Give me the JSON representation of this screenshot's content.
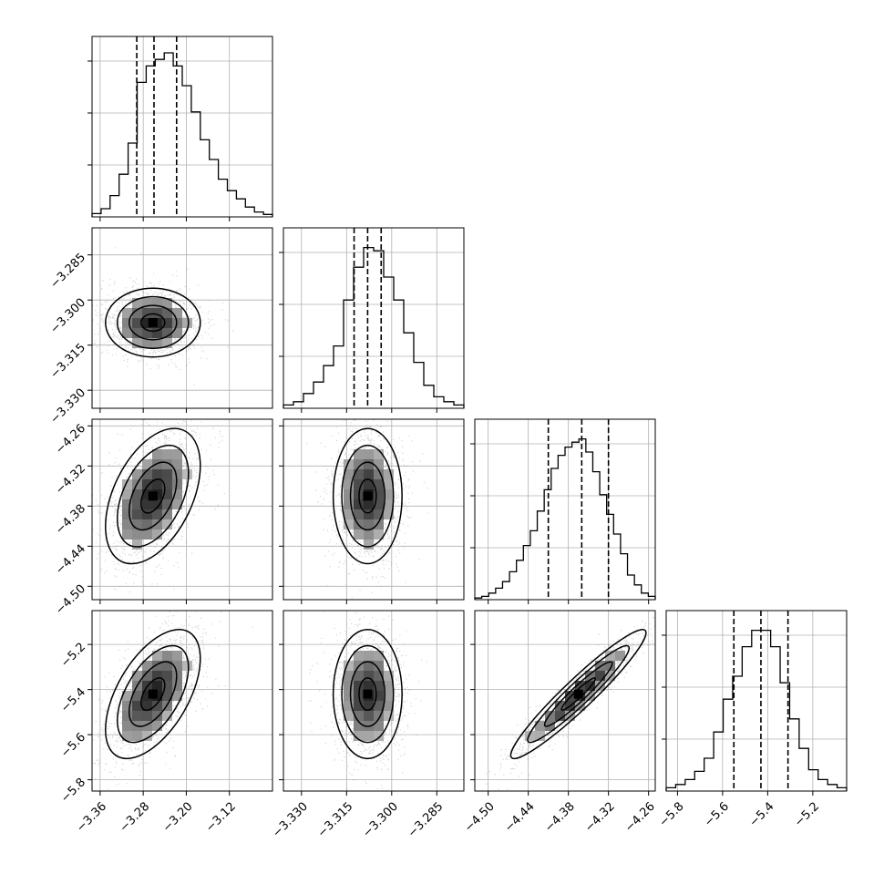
{
  "chart_data": {
    "type": "corner",
    "grid": true,
    "parameters": [
      {
        "range": [
          -3.375,
          -3.04
        ],
        "median": -3.26,
        "q16": -3.292,
        "q84": -3.218,
        "ticks": [
          -3.36,
          -3.28,
          -3.2,
          -3.12
        ],
        "tick_labels": [
          "−3.36",
          "−3.28",
          "−3.20",
          "−3.12"
        ],
        "hist": [
          0.02,
          0.05,
          0.13,
          0.26,
          0.45,
          0.82,
          0.92,
          0.96,
          1.0,
          0.92,
          0.8,
          0.64,
          0.47,
          0.35,
          0.23,
          0.16,
          0.11,
          0.06,
          0.03,
          0.015
        ]
      },
      {
        "range": [
          -3.336,
          -3.276
        ],
        "median": -3.308,
        "q16": -3.3125,
        "q84": -3.3035,
        "ticks": [
          -3.33,
          -3.315,
          -3.3,
          -3.285
        ],
        "tick_labels": [
          "−3.330",
          "−3.315",
          "−3.300",
          "−3.285"
        ],
        "hist": [
          0.02,
          0.04,
          0.09,
          0.16,
          0.26,
          0.38,
          0.66,
          0.86,
          0.98,
          0.96,
          0.8,
          0.66,
          0.46,
          0.28,
          0.14,
          0.07,
          0.04,
          0.02
        ]
      },
      {
        "range": [
          -4.52,
          -4.25
        ],
        "median": -4.36,
        "q16": -4.41,
        "q84": -4.32,
        "ticks": [
          -4.5,
          -4.44,
          -4.38,
          -4.32,
          -4.26
        ],
        "tick_labels": [
          "−4.50",
          "−4.44",
          "−4.38",
          "−4.32",
          "−4.26"
        ],
        "hist": [
          0.01,
          0.02,
          0.04,
          0.07,
          0.11,
          0.17,
          0.24,
          0.33,
          0.42,
          0.54,
          0.67,
          0.8,
          0.88,
          0.93,
          0.96,
          0.98,
          0.9,
          0.78,
          0.64,
          0.52,
          0.4,
          0.28,
          0.15,
          0.09,
          0.04,
          0.02
        ]
      },
      {
        "range": [
          -5.85,
          -5.05
        ],
        "median": -5.43,
        "q16": -5.55,
        "q84": -5.31,
        "ticks": [
          -5.8,
          -5.6,
          -5.4,
          -5.2
        ],
        "tick_labels": [
          "−5.8",
          "−5.6",
          "−5.4",
          "−5.2"
        ],
        "hist": [
          0.02,
          0.04,
          0.07,
          0.12,
          0.2,
          0.36,
          0.56,
          0.7,
          0.88,
          0.98,
          0.98,
          0.88,
          0.66,
          0.44,
          0.26,
          0.13,
          0.07,
          0.04,
          0.02
        ]
      }
    ],
    "pairs": [
      {
        "row": 1,
        "col": 0,
        "center": [
          -3.262,
          -3.3075
        ],
        "sigma": [
          0.04,
          0.0052
        ],
        "rho": 0.0
      },
      {
        "row": 2,
        "col": 0,
        "center": [
          -3.262,
          -4.365
        ],
        "sigma": [
          0.04,
          0.046
        ],
        "rho": 0.45
      },
      {
        "row": 2,
        "col": 1,
        "center": [
          -3.308,
          -4.365
        ],
        "sigma": [
          0.0052,
          0.046
        ],
        "rho": 0.0
      },
      {
        "row": 3,
        "col": 0,
        "center": [
          -3.262,
          -5.42
        ],
        "sigma": [
          0.04,
          0.13
        ],
        "rho": 0.55
      },
      {
        "row": 3,
        "col": 1,
        "center": [
          -3.308,
          -5.42
        ],
        "sigma": [
          0.0052,
          0.13
        ],
        "rho": 0.0
      },
      {
        "row": 3,
        "col": 2,
        "center": [
          -4.365,
          -5.42
        ],
        "sigma": [
          0.046,
          0.13
        ],
        "rho": 0.95
      }
    ]
  }
}
